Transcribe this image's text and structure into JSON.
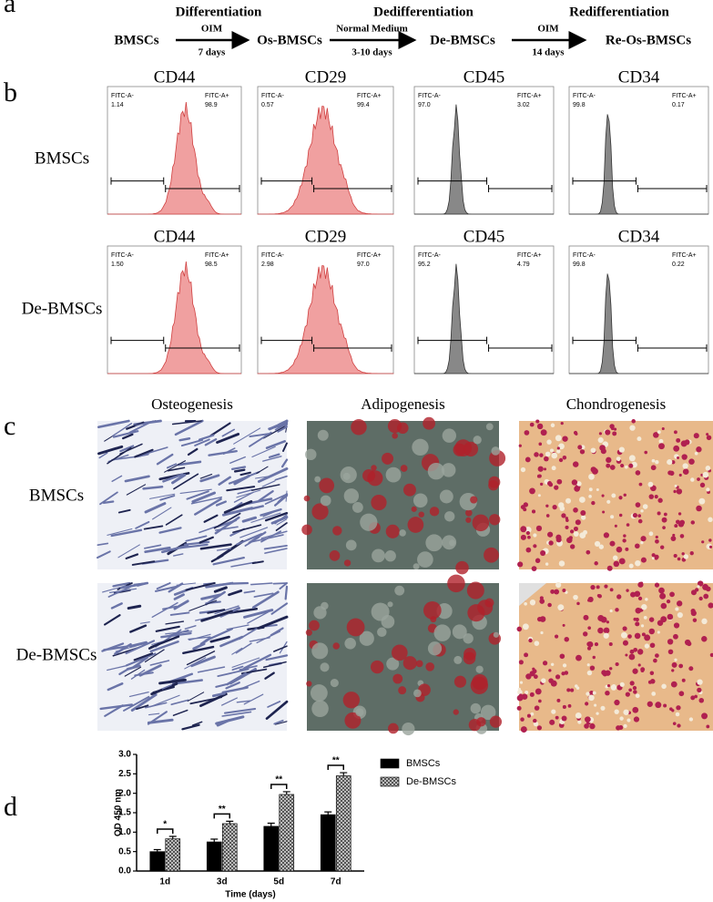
{
  "panel_labels": [
    "a",
    "b",
    "c",
    "d"
  ],
  "schema": {
    "steps": [
      "Differentiation",
      "Dedifferentiation",
      "Redifferentiation"
    ],
    "cells": [
      "BMSCs",
      "Os-BMSCs",
      "De-BMSCs",
      "Re-Os-BMSCs"
    ],
    "conditions_top": [
      "OIM",
      "Normal Medium",
      "OIM"
    ],
    "conditions_bottom": [
      "7 days",
      "3-10 days",
      "14 days"
    ]
  },
  "flow": {
    "rows": [
      "BMSCs",
      "De-BMSCs"
    ],
    "markers": [
      [
        "CD44",
        "CD29",
        "CD45",
        "CD34"
      ],
      [
        "CD44",
        "CD29",
        "CD45",
        "CD34"
      ]
    ],
    "gates": [
      "FITC-A-",
      "FITC-A+"
    ],
    "values": [
      [
        [
          "1.14",
          "98.9"
        ],
        [
          "0.57",
          "99.4"
        ],
        [
          "97.0",
          "3.02"
        ],
        [
          "99.8",
          "0.17"
        ]
      ],
      [
        [
          "1.50",
          "98.5"
        ],
        [
          "2.98",
          "97.0"
        ],
        [
          "95.2",
          "4.79"
        ],
        [
          "99.8",
          "0.22"
        ]
      ]
    ]
  },
  "staining": {
    "columns": [
      "Osteogenesis",
      "Adipogenesis",
      "Chondrogenesis"
    ],
    "rows": [
      "BMSCs",
      "De-BMSCs"
    ]
  },
  "chart_data": {
    "type": "bar",
    "ylabel": "OD 450 nm",
    "xlabel": "Time (days)",
    "categories": [
      "1d",
      "3d",
      "5d",
      "7d"
    ],
    "series": [
      {
        "name": "BMSCs",
        "color": "#000000",
        "values": [
          0.5,
          0.75,
          1.15,
          1.45
        ],
        "errors": [
          0.05,
          0.07,
          0.08,
          0.07
        ]
      },
      {
        "name": "De-BMSCs",
        "color": "#8c8c8c",
        "values": [
          0.83,
          1.22,
          1.97,
          2.45
        ],
        "errors": [
          0.06,
          0.06,
          0.07,
          0.08
        ]
      }
    ],
    "significance": [
      "*",
      "**",
      "**",
      "**"
    ],
    "ylim": [
      0,
      3
    ],
    "yticks": [
      {
        "value": 0,
        "label": "0.0"
      },
      {
        "value": 0.5,
        "label": "0.5"
      },
      {
        "value": 1,
        "label": "1.0"
      },
      {
        "value": 1.5,
        "label": "1.5"
      },
      {
        "value": 2,
        "label": "2.0"
      },
      {
        "value": 2.5,
        "label": "2.5"
      },
      {
        "value": 3,
        "label": "3.0"
      }
    ]
  }
}
